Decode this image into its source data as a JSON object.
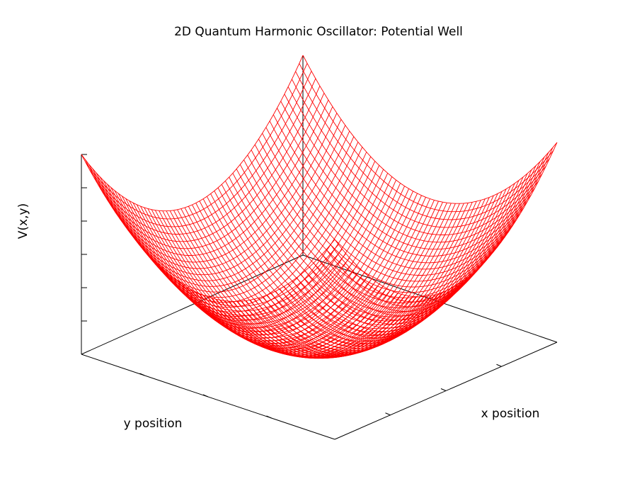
{
  "chart_data": {
    "type": "surface",
    "title": "2D Quantum Harmonic Oscillator: Potential Well",
    "xlabel": "x position",
    "ylabel": "y position",
    "zlabel": "V(x,y)",
    "function": "V(x,y) = 0.5 * (x^2 + y^2)",
    "xlim": [
      -3,
      3
    ],
    "ylim": [
      -3,
      3
    ],
    "zlim": [
      0,
      9
    ],
    "grid_samples": 61,
    "grid": false,
    "series": [
      {
        "color": "#ff0000",
        "style": "wireframe"
      }
    ]
  }
}
